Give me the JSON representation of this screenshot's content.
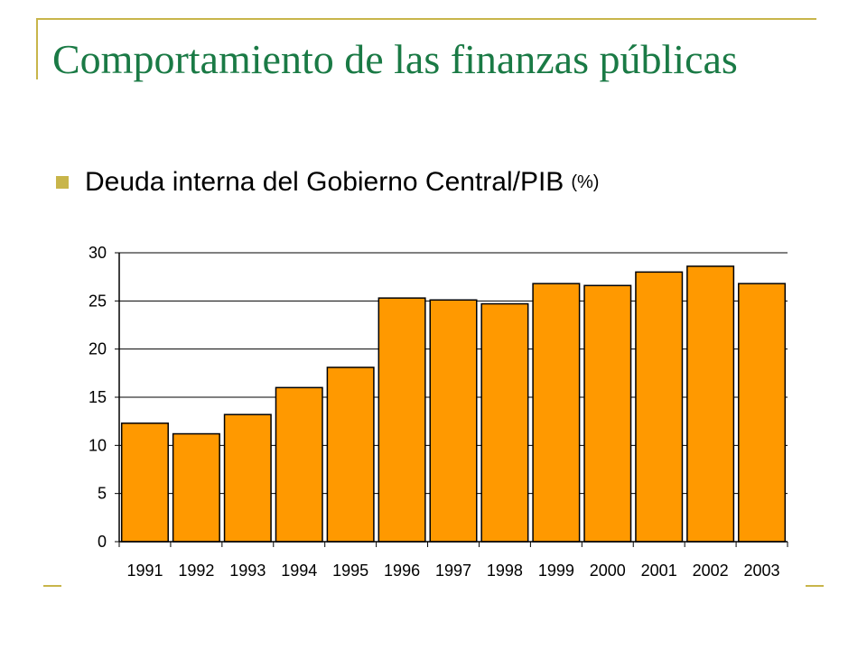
{
  "slide": {
    "title": "Comportamiento de las finanzas públicas",
    "bullet": "Deuda interna del Gobierno Central/PIB",
    "bullet_unit": "(%)"
  },
  "colors": {
    "bar": "#ff9900",
    "title": "#1a7a45",
    "accent": "#c8b54a"
  },
  "chart_data": {
    "type": "bar",
    "categories": [
      "1991",
      "1992",
      "1993",
      "1994",
      "1995",
      "1996",
      "1997",
      "1998",
      "1999",
      "2000",
      "2001",
      "2002",
      "2003"
    ],
    "values": [
      12.3,
      11.2,
      13.2,
      16.0,
      18.1,
      25.3,
      25.1,
      24.7,
      26.8,
      26.6,
      28.0,
      28.6,
      26.8
    ],
    "title": "",
    "xlabel": "",
    "ylabel": "",
    "ylim": [
      0,
      30
    ],
    "yticks": [
      0,
      5,
      10,
      15,
      20,
      25,
      30
    ],
    "grid": true,
    "legend": "none"
  }
}
